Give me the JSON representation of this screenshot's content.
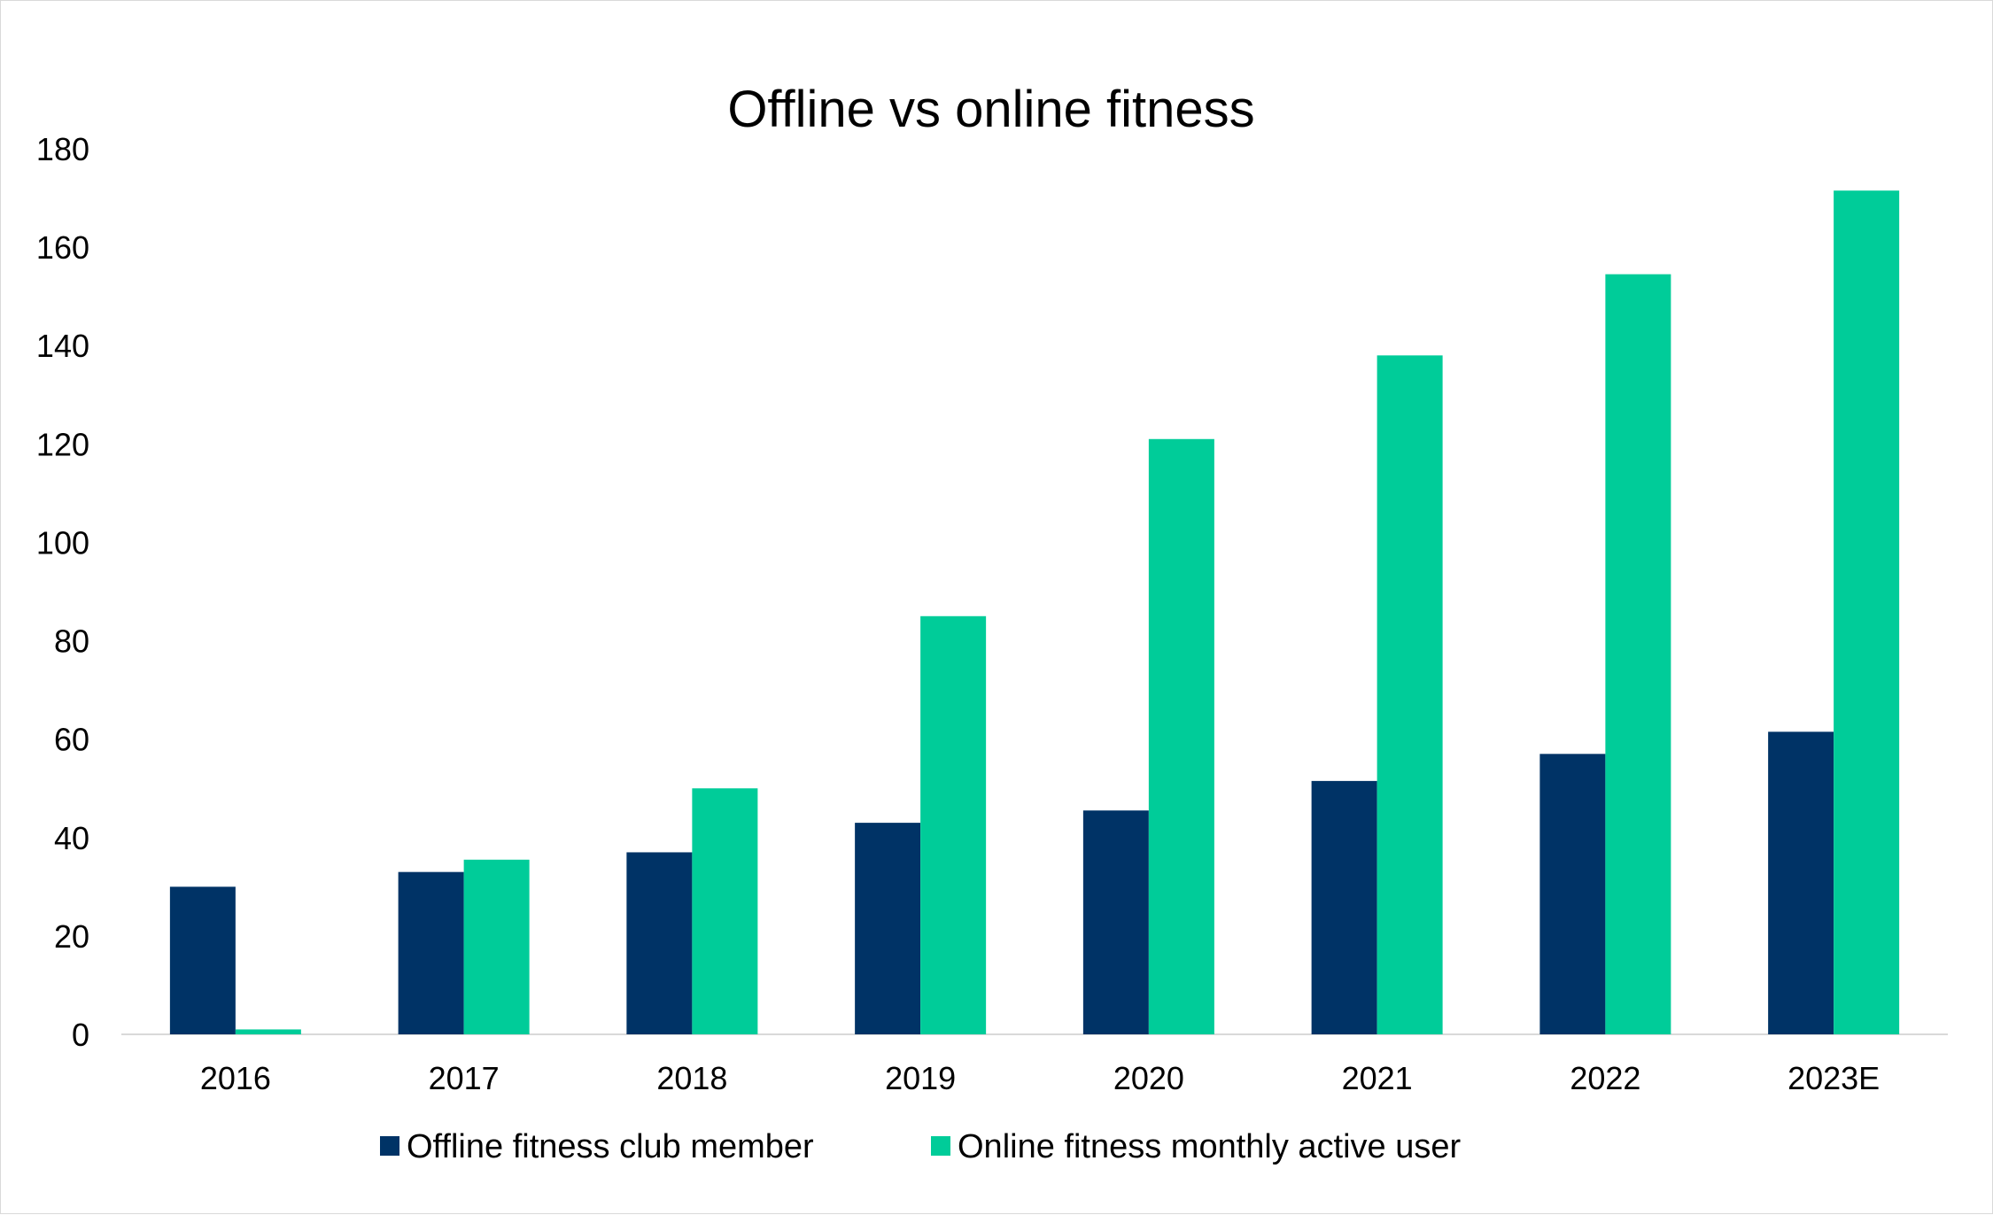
{
  "chart_data": {
    "type": "bar",
    "title": "Offline vs online fitness",
    "xlabel": "",
    "ylabel": "",
    "ylim": [
      0,
      180
    ],
    "yticks": [
      0,
      20,
      40,
      60,
      80,
      100,
      120,
      140,
      160,
      180
    ],
    "categories": [
      "2016",
      "2017",
      "2018",
      "2019",
      "2020",
      "2021",
      "2022",
      "2023E"
    ],
    "series": [
      {
        "name": "Offline fitness club member",
        "color": "#003366",
        "values": [
          30,
          33,
          37,
          43,
          45.5,
          51.5,
          57,
          61.5
        ]
      },
      {
        "name": "Online fitness monthly active user",
        "color": "#00CC99",
        "values": [
          1,
          35.5,
          50,
          85,
          121,
          138,
          154.5,
          171.5
        ]
      }
    ],
    "grid": false,
    "legend_position": "bottom"
  }
}
